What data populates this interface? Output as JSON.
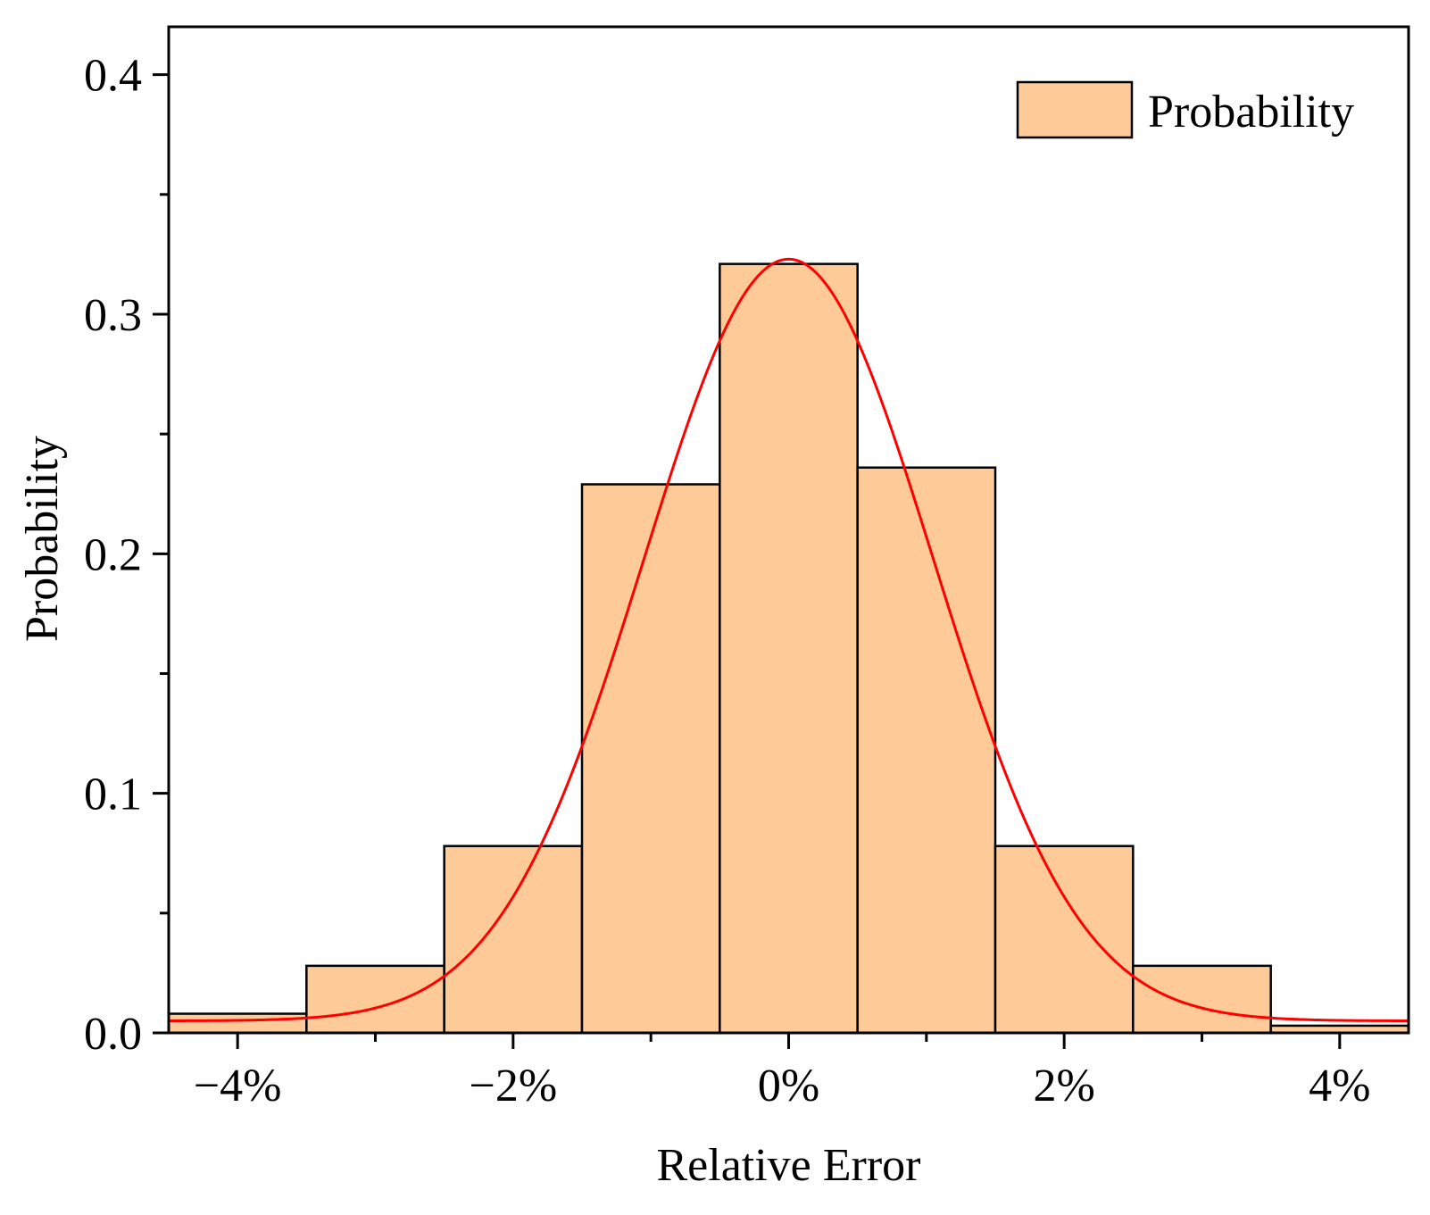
{
  "chart_data": {
    "type": "bar",
    "title": "",
    "xlabel": "Relative Error",
    "ylabel": "Probability",
    "xlim": [
      -4.5,
      4.5
    ],
    "ylim": [
      0,
      0.42
    ],
    "x_ticks": [
      -4,
      -2,
      0,
      2,
      4
    ],
    "x_tick_labels": [
      "−4%",
      "−2%",
      "0%",
      "2%",
      "4%"
    ],
    "x_minor_ticks": [
      -3,
      -1,
      1,
      3
    ],
    "y_ticks": [
      0.0,
      0.1,
      0.2,
      0.3,
      0.4
    ],
    "y_tick_labels": [
      "0.0",
      "0.1",
      "0.2",
      "0.3",
      "0.4"
    ],
    "y_minor_ticks": [
      0.05,
      0.15,
      0.25,
      0.35
    ],
    "grid": false,
    "legend": {
      "position": "top-right",
      "entries": [
        "Probability"
      ]
    },
    "series": [
      {
        "name": "Probability",
        "kind": "histogram",
        "color": "#FDCA98",
        "edge_color": "#000000",
        "bins": [
          {
            "x0": -4.5,
            "x1": -3.5,
            "value": 0.008
          },
          {
            "x0": -3.5,
            "x1": -2.5,
            "value": 0.028
          },
          {
            "x0": -2.5,
            "x1": -1.5,
            "value": 0.078
          },
          {
            "x0": -1.5,
            "x1": -0.5,
            "value": 0.229
          },
          {
            "x0": -0.5,
            "x1": 0.5,
            "value": 0.321
          },
          {
            "x0": 0.5,
            "x1": 1.5,
            "value": 0.236
          },
          {
            "x0": 1.5,
            "x1": 2.5,
            "value": 0.078
          },
          {
            "x0": 2.5,
            "x1": 3.5,
            "value": 0.028
          },
          {
            "x0": 3.5,
            "x1": 4.5,
            "value": 0.003
          }
        ]
      },
      {
        "kind": "fit-curve",
        "distribution": "gaussian",
        "color": "#FF0000",
        "peak": 0.318,
        "mean": 0.0,
        "sigma": 1.05,
        "baseline": 0.005
      }
    ]
  }
}
